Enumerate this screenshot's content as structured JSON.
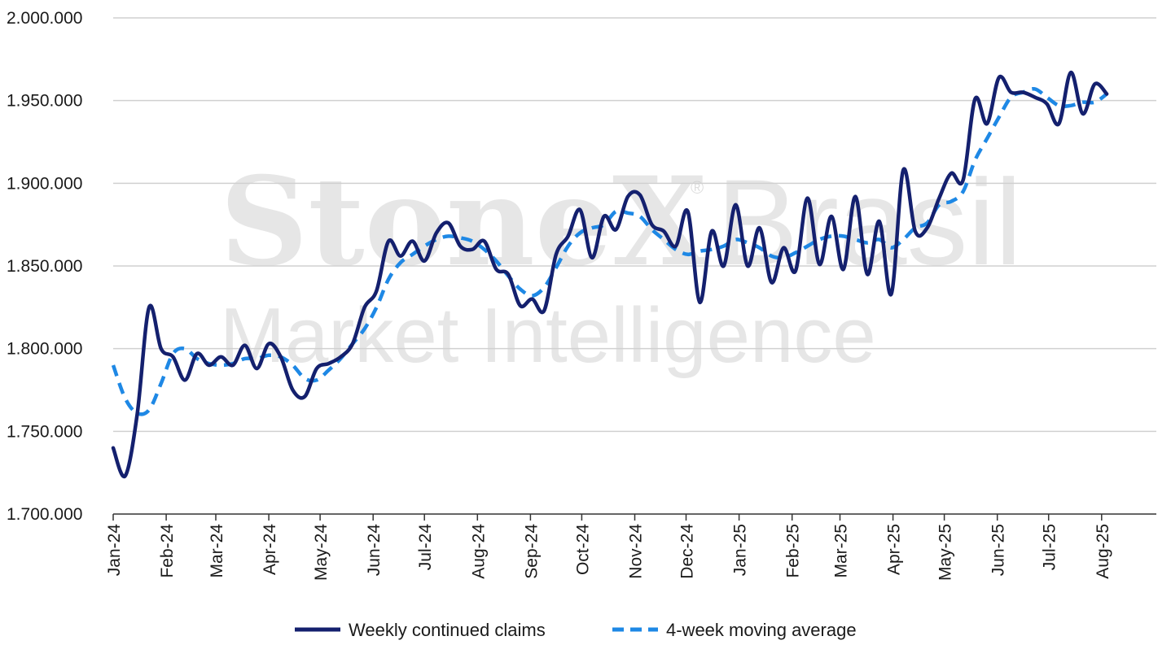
{
  "watermark": {
    "brand": "StoneX",
    "brand_suffix": "Brasil",
    "registered": "®",
    "subtitle": "Market Intelligence"
  },
  "chart_data": {
    "type": "line",
    "title": "",
    "xlabel": "",
    "ylabel": "",
    "x_start": "2024-01-01",
    "x_step_days": 7,
    "x_tick_labels": [
      "Jan-24",
      "Feb-24",
      "Mar-24",
      "Apr-24",
      "May-24",
      "Jun-24",
      "Jul-24",
      "Aug-24",
      "Sep-24",
      "Oct-24",
      "Nov-24",
      "Dec-24",
      "Jan-25",
      "Feb-25",
      "Mar-25",
      "Apr-25",
      "May-25",
      "Jun-25",
      "Jul-25",
      "Aug-25"
    ],
    "y_tick_labels": [
      "1.700.000",
      "1.750.000",
      "1.800.000",
      "1.850.000",
      "1.900.000",
      "1.950.000",
      "2.000.000"
    ],
    "ylim": [
      1700000,
      2000000
    ],
    "grid": "horizontal",
    "legend_position": "bottom",
    "series": [
      {
        "name": "Weekly continued claims",
        "color": "#14206e",
        "style": "solid",
        "values": [
          1740000,
          1723000,
          1760000,
          1825000,
          1800000,
          1795000,
          1781000,
          1797000,
          1790000,
          1795000,
          1790000,
          1802000,
          1788000,
          1803000,
          1795000,
          1775000,
          1771000,
          1788000,
          1791000,
          1795000,
          1803000,
          1825000,
          1835000,
          1865000,
          1856000,
          1865000,
          1853000,
          1870000,
          1876000,
          1862000,
          1860000,
          1865000,
          1848000,
          1845000,
          1826000,
          1830000,
          1823000,
          1857000,
          1868000,
          1884000,
          1855000,
          1880000,
          1872000,
          1892000,
          1893000,
          1875000,
          1871000,
          1862000,
          1883000,
          1828000,
          1871000,
          1850000,
          1887000,
          1850000,
          1873000,
          1840000,
          1861000,
          1847000,
          1891000,
          1851000,
          1880000,
          1848000,
          1892000,
          1845000,
          1877000,
          1833000,
          1908000,
          1871000,
          1873000,
          1891000,
          1906000,
          1902000,
          1951000,
          1936000,
          1964000,
          1955000,
          1955000,
          1952000,
          1948000,
          1936000,
          1967000,
          1942000,
          1960000,
          1954000
        ]
      },
      {
        "name": "4-week moving average",
        "color": "#1e88e5",
        "style": "dashed",
        "values": [
          1790000,
          1770000,
          1761000,
          1763000,
          1779000,
          1797000,
          1800000,
          1794000,
          1791000,
          1790000,
          1791000,
          1794000,
          1794000,
          1796000,
          1795000,
          1790000,
          1782000,
          1781000,
          1787000,
          1794000,
          1803000,
          1812000,
          1825000,
          1842000,
          1852000,
          1857000,
          1862000,
          1866000,
          1868000,
          1867000,
          1865000,
          1860000,
          1853000,
          1844000,
          1836000,
          1832000,
          1837000,
          1849000,
          1862000,
          1870000,
          1873000,
          1875000,
          1883000,
          1882000,
          1880000,
          1872000,
          1866000,
          1860000,
          1857000,
          1859000,
          1860000,
          1862000,
          1866000,
          1864000,
          1861000,
          1856000,
          1855000,
          1858000,
          1862000,
          1866000,
          1868000,
          1868000,
          1866000,
          1864000,
          1866000,
          1861000,
          1866000,
          1873000,
          1876000,
          1887000,
          1889000,
          1895000,
          1914000,
          1927000,
          1940000,
          1952000,
          1955000,
          1957000,
          1952000,
          1947000,
          1947000,
          1949000,
          1949000,
          1954000
        ]
      }
    ]
  }
}
